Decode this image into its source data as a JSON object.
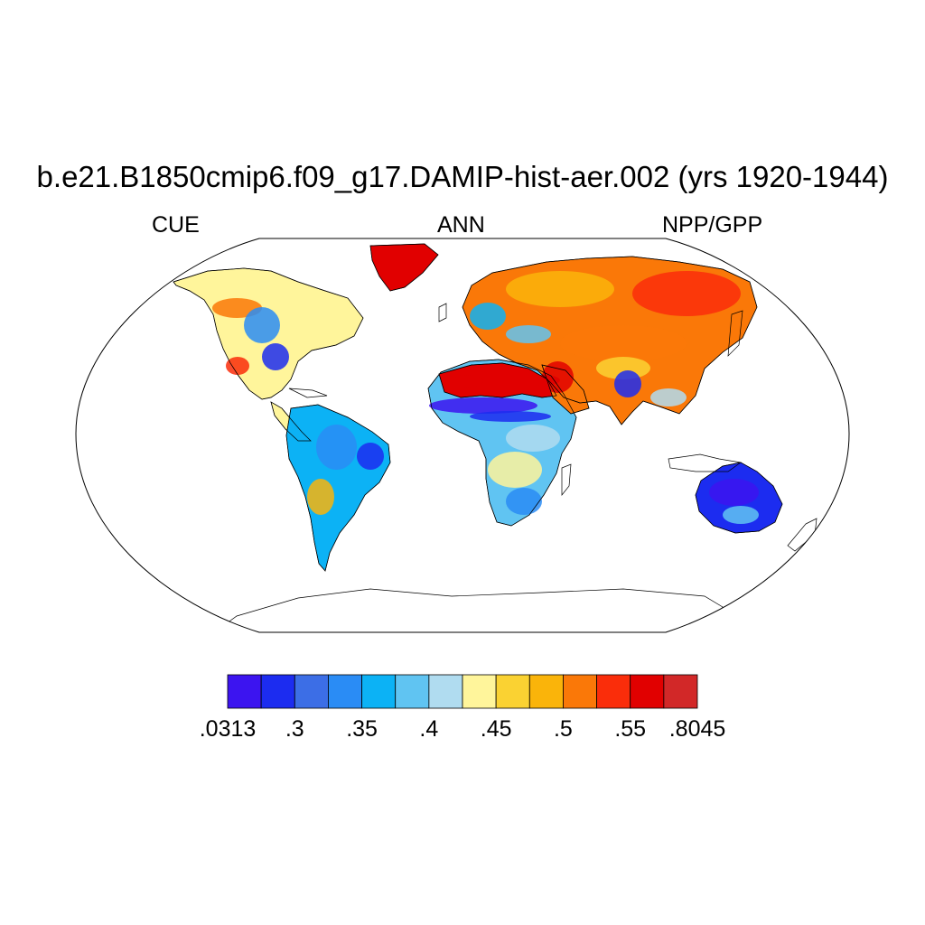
{
  "title": "b.e21.B1850cmip6.f09_g17.DAMIP-hist-aer.002 (yrs 1920-1944)",
  "subtitle": {
    "left": "CUE",
    "center": "ANN",
    "right": "NPP/GPP"
  },
  "map": {
    "projection": "robinson",
    "variable": "CUE",
    "season": "ANN",
    "colors": {
      "land_missing": "#ffffff",
      "coastline": "#000000",
      "frame": "#000000"
    },
    "regions": [
      {
        "name": "north-america",
        "level": 7
      },
      {
        "name": "greenland",
        "level": 12
      },
      {
        "name": "south-america",
        "level": 4
      },
      {
        "name": "africa",
        "level": 5
      },
      {
        "name": "sahara",
        "level": 12
      },
      {
        "name": "europe-asia",
        "level": 10
      },
      {
        "name": "australia",
        "level": 1
      }
    ]
  },
  "colorbar": {
    "colors": [
      "#3c14f0",
      "#1c2cf0",
      "#3c6ee6",
      "#2a8cf5",
      "#0cb2f5",
      "#60c4f2",
      "#b0dcf0",
      "#fff59b",
      "#fad232",
      "#fab40a",
      "#fa7808",
      "#fa2d0a",
      "#e10000",
      "#d22828"
    ],
    "labels": [
      ".0313",
      ".3",
      ".35",
      ".4",
      ".45",
      ".5",
      ".55",
      ".8045"
    ]
  }
}
